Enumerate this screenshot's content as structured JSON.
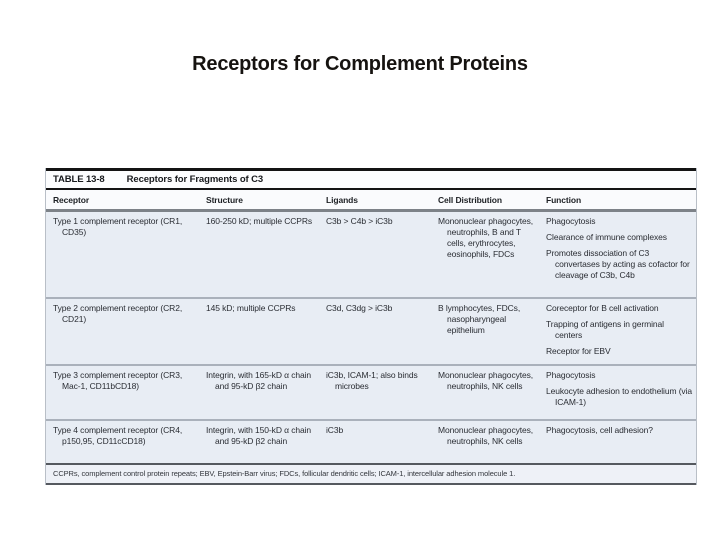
{
  "slide": {
    "title": "Receptors for Complement Proteins"
  },
  "table": {
    "label": "TABLE 13-8",
    "title": "Receptors for Fragments of C3",
    "columns": [
      "Receptor",
      "Structure",
      "Ligands",
      "Cell Distribution",
      "Function"
    ],
    "rows": [
      {
        "receptor": [
          "Type 1 complement receptor (CR1, CD35)"
        ],
        "structure": [
          "160-250 kD; multiple CCPRs"
        ],
        "ligands": [
          "C3b > C4b > iC3b"
        ],
        "cell_distribution": [
          "Mononuclear phagocytes, neutrophils, B and T cells, erythrocytes, eosinophils, FDCs"
        ],
        "function": [
          "Phagocytosis",
          "Clearance of immune complexes",
          "Promotes dissociation of C3 convertases by acting as cofactor for cleavage of C3b, C4b"
        ]
      },
      {
        "receptor": [
          "Type 2 complement receptor (CR2, CD21)"
        ],
        "structure": [
          "145 kD; multiple CCPRs"
        ],
        "ligands": [
          "C3d, C3dg > iC3b"
        ],
        "cell_distribution": [
          "B lymphocytes, FDCs, nasopharyngeal epithelium"
        ],
        "function": [
          "Coreceptor for B cell activation",
          "Trapping of antigens in germinal centers",
          "Receptor for EBV"
        ]
      },
      {
        "receptor": [
          "Type 3 complement receptor (CR3, Mac-1, CD11bCD18)"
        ],
        "structure": [
          "Integrin, with 165-kD α chain and 95-kD β2 chain"
        ],
        "ligands": [
          "iC3b, ICAM-1; also binds microbes"
        ],
        "cell_distribution": [
          "Mononuclear phagocytes, neutrophils, NK cells"
        ],
        "function": [
          "Phagocytosis",
          "Leukocyte adhesion to endothelium (via ICAM-1)"
        ]
      },
      {
        "receptor": [
          "Type 4 complement receptor (CR4, p150,95, CD11cCD18)"
        ],
        "structure": [
          "Integrin, with 150-kD α chain and 95-kD β2 chain"
        ],
        "ligands": [
          "iC3b"
        ],
        "cell_distribution": [
          "Mononuclear phagocytes, neutrophils, NK cells"
        ],
        "function": [
          "Phagocytosis, cell adhesion?"
        ]
      }
    ],
    "footnote": "CCPRs, complement control protein repeats; EBV, Epstein-Barr virus; FDCs, follicular dendritic cells; ICAM-1, intercellular adhesion molecule 1."
  },
  "colors": {
    "table_body_bg": "#e8edf4",
    "row_divider": "#aab1bb",
    "header_rule": "#7d8288",
    "title_text": "#161310"
  }
}
